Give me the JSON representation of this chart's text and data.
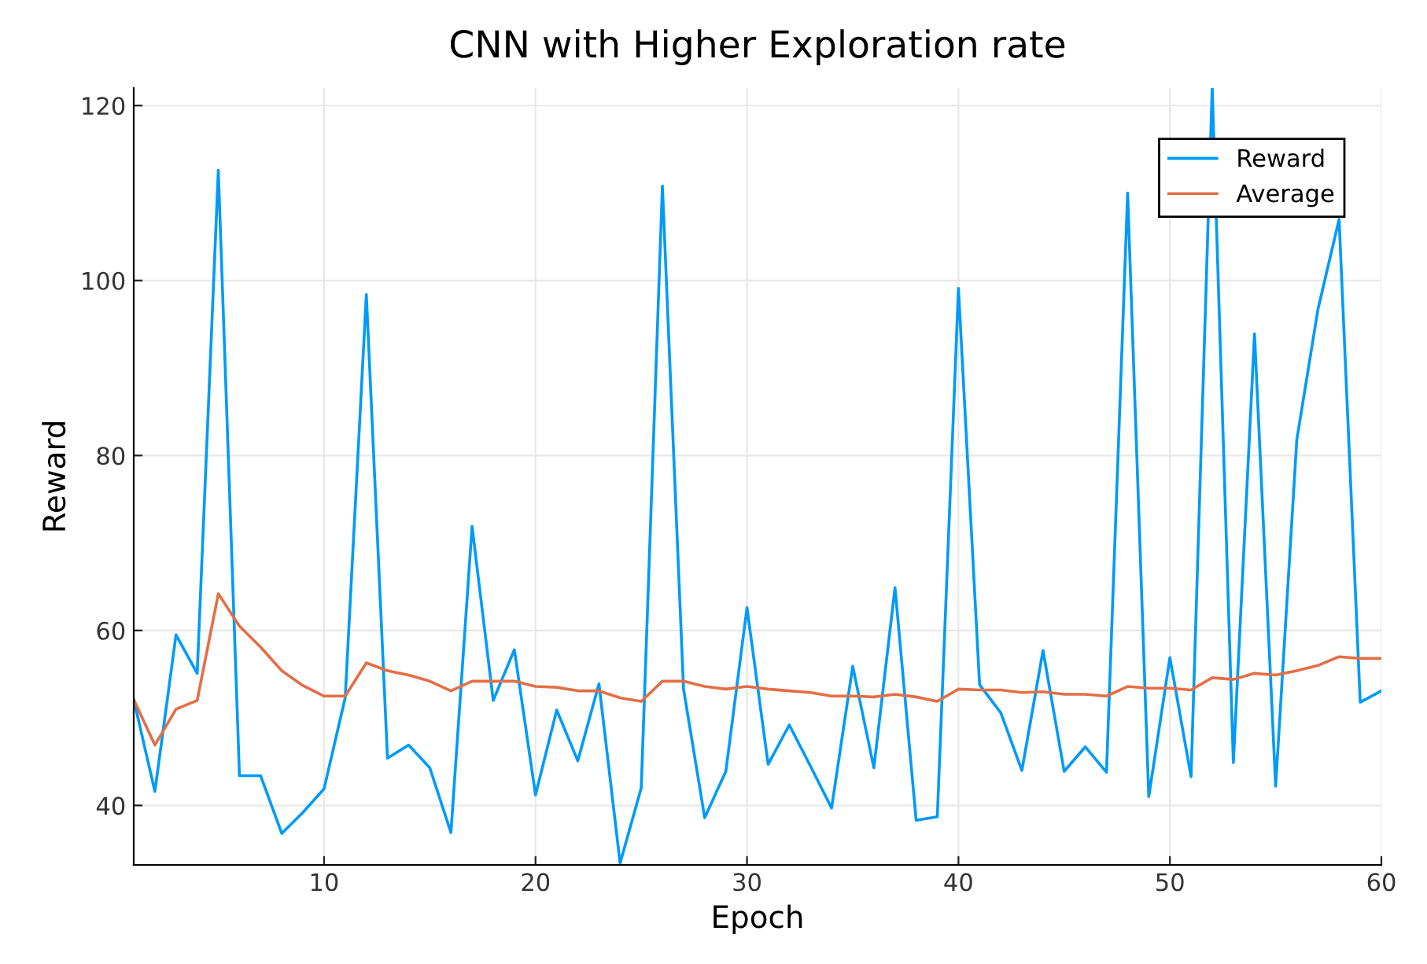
{
  "chart_data": {
    "type": "line",
    "title": "CNN with Higher Exploration rate",
    "xlabel": "Epoch",
    "ylabel": "Reward",
    "x": [
      1,
      2,
      3,
      4,
      5,
      6,
      7,
      8,
      9,
      10,
      11,
      12,
      13,
      14,
      15,
      16,
      17,
      18,
      19,
      20,
      21,
      22,
      23,
      24,
      25,
      26,
      27,
      28,
      29,
      30,
      31,
      32,
      33,
      34,
      35,
      36,
      37,
      38,
      39,
      40,
      41,
      42,
      43,
      44,
      45,
      46,
      47,
      48,
      49,
      50,
      51,
      52,
      53,
      54,
      55,
      56,
      57,
      58,
      59,
      60
    ],
    "series": [
      {
        "name": "Reward",
        "color": "#009af9",
        "values": [
          52.1,
          41.6,
          59.5,
          55.1,
          112.6,
          43.4,
          43.4,
          36.8,
          39.2,
          41.9,
          52.3,
          98.4,
          45.4,
          46.9,
          44.3,
          36.9,
          71.9,
          52.0,
          57.8,
          41.2,
          50.9,
          45.1,
          53.9,
          33.4,
          42.0,
          110.8,
          53.3,
          38.6,
          43.9,
          62.6,
          44.7,
          49.2,
          44.5,
          39.7,
          55.9,
          44.3,
          64.9,
          38.3,
          38.7,
          99.1,
          53.8,
          50.6,
          44.0,
          57.7,
          43.9,
          46.7,
          43.8,
          110,
          41.0,
          56.9,
          43.3,
          122,
          44.9,
          93.9,
          42.2,
          81.8,
          96.7,
          107,
          51.8,
          53.1
        ]
      },
      {
        "name": "Average",
        "color": "#e26f46",
        "values": [
          52.1,
          46.9,
          51.0,
          52.0,
          64.2,
          60.5,
          58.1,
          55.4,
          53.7,
          52.5,
          52.5,
          56.3,
          55.4,
          54.9,
          54.2,
          53.1,
          54.2,
          54.2,
          54.2,
          53.6,
          53.5,
          53.1,
          53.1,
          52.3,
          51.9,
          54.2,
          54.2,
          53.6,
          53.3,
          53.6,
          53.3,
          53.1,
          52.9,
          52.5,
          52.5,
          52.4,
          52.7,
          52.4,
          51.9,
          53.3,
          53.2,
          53.2,
          52.9,
          53.0,
          52.7,
          52.7,
          52.5,
          53.6,
          53.4,
          53.4,
          53.2,
          54.6,
          54.4,
          55.1,
          54.9,
          55.4,
          56.0,
          57.0,
          56.8,
          56.8
        ]
      }
    ],
    "xlim": [
      1,
      60
    ],
    "xticks": [
      10,
      20,
      30,
      40,
      50,
      60
    ],
    "ylim": [
      33.2,
      122
    ],
    "yticks": [
      40,
      60,
      80,
      100,
      120
    ],
    "grid": true,
    "legend": "top right",
    "marker": "none",
    "line_style": "solid"
  }
}
